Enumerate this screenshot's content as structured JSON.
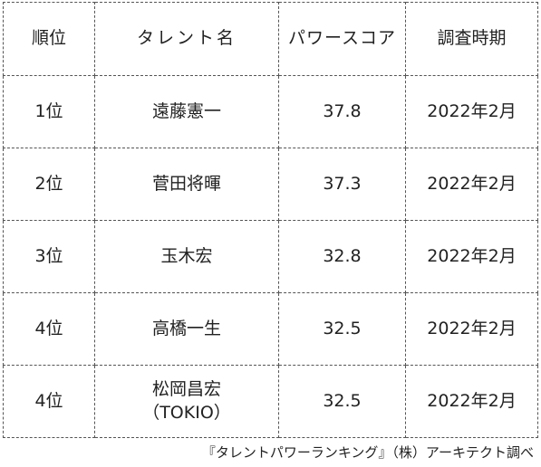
{
  "table": {
    "headers": [
      "順位",
      "タレント名",
      "パワースコア",
      "調査時期"
    ],
    "rows": [
      {
        "rank": "1位",
        "name": [
          "遠藤憲一"
        ],
        "score": "37.8",
        "date": "2022年2月"
      },
      {
        "rank": "2位",
        "name": [
          "菅田将暉"
        ],
        "score": "37.3",
        "date": "2022年2月"
      },
      {
        "rank": "3位",
        "name": [
          "玉木宏"
        ],
        "score": "32.8",
        "date": "2022年2月"
      },
      {
        "rank": "4位",
        "name": [
          "高橋一生"
        ],
        "score": "32.5",
        "date": "2022年2月"
      },
      {
        "rank": "4位",
        "name": [
          "松岡昌宏",
          "（TOKIO）"
        ],
        "score": "32.5",
        "date": "2022年2月"
      }
    ]
  },
  "source_note": "『タレントパワーランキング』（株）アーキテクト調べ"
}
